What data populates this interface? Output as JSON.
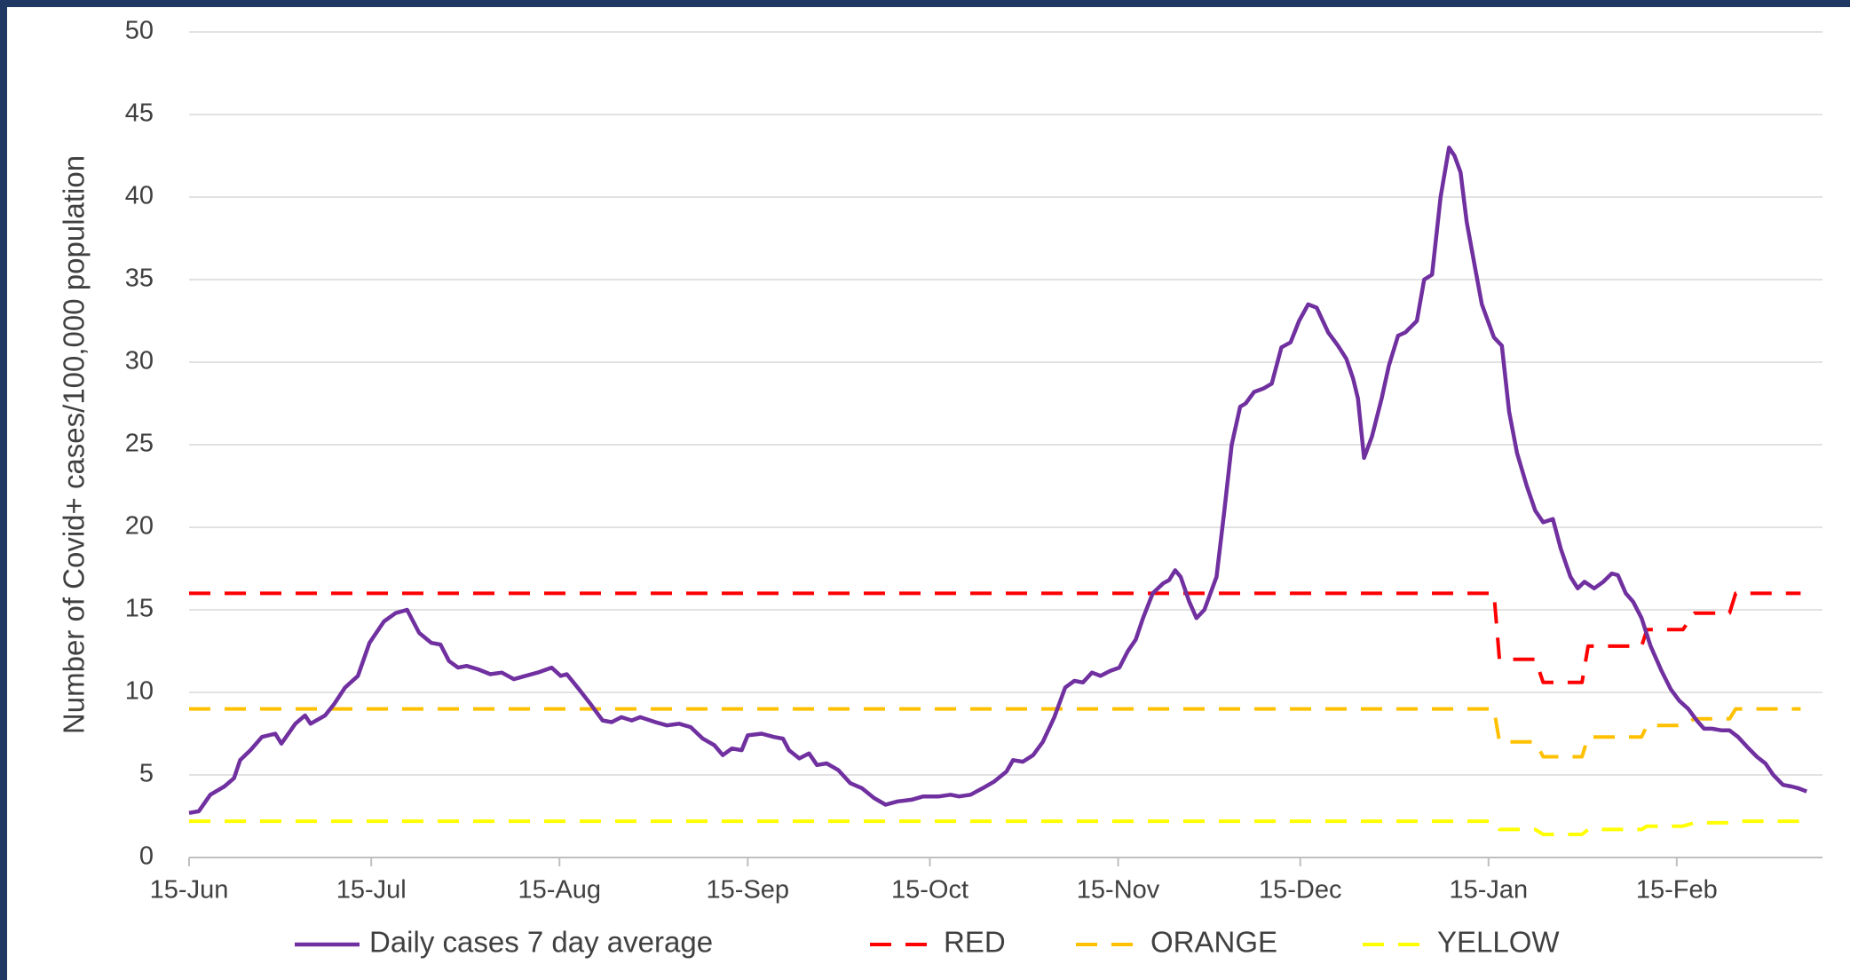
{
  "chart_data": {
    "type": "line",
    "y_label": "Number of Covid+ cases/100,000 population",
    "xlim": [
      0,
      269
    ],
    "xticks": [
      {
        "value": 0,
        "label": "15-Jun"
      },
      {
        "value": 30,
        "label": "15-Jul"
      },
      {
        "value": 61,
        "label": "15-Aug"
      },
      {
        "value": 92,
        "label": "15-Sep"
      },
      {
        "value": 122,
        "label": "15-Oct"
      },
      {
        "value": 153,
        "label": "15-Nov"
      },
      {
        "value": 183,
        "label": "15-Dec"
      },
      {
        "value": 214,
        "label": "15-Jan"
      },
      {
        "value": 245,
        "label": "15-Feb"
      }
    ],
    "ylim": [
      0,
      50
    ],
    "yticks": [
      0,
      5,
      10,
      15,
      20,
      25,
      30,
      35,
      40,
      45,
      50
    ],
    "grid": true,
    "legend": "bottom",
    "series": [
      {
        "name": "Daily cases 7 day average",
        "color": "#7030a0",
        "style": "solid",
        "x": [
          0,
          1.6,
          3.5,
          5.8,
          7.4,
          8.4,
          10.1,
          12.0,
          14.2,
          15.2,
          17.5,
          19.1,
          20.0,
          22.4,
          23.9,
          25.7,
          27.8,
          29.7,
          32.1,
          34.0,
          35.9,
          37.9,
          39.9,
          41.4,
          42.8,
          44.3,
          45.7,
          47.6,
          49.6,
          51.5,
          53.5,
          55.4,
          57.4,
          59.7,
          61.2,
          62.2,
          64.2,
          66.1,
          68.1,
          69.6,
          71.2,
          72.9,
          74.3,
          76.8,
          78.7,
          80.7,
          82.6,
          84.6,
          86.5,
          87.9,
          89.4,
          91.0,
          92.0,
          94.3,
          96.3,
          97.8,
          98.8,
          100.5,
          102.1,
          103.4,
          105.0,
          106.9,
          108.9,
          110.8,
          112.8,
          114.7,
          116.7,
          119.0,
          120.9,
          123.5,
          125.4,
          126.8,
          128.7,
          130.7,
          132.6,
          134.6,
          135.7,
          137.3,
          139.0,
          140.6,
          142.5,
          144.3,
          145.8,
          147.2,
          148.7,
          150.1,
          151.7,
          153.2,
          154.6,
          155.9,
          157.1,
          158.7,
          160.4,
          161.4,
          162.4,
          163.3,
          164.7,
          165.9,
          167.2,
          169.2,
          170.5,
          171.7,
          173.1,
          174.0,
          175.4,
          176.9,
          178.3,
          179.9,
          181.4,
          182.8,
          184.3,
          185.7,
          187.6,
          189.2,
          190.6,
          191.7,
          192.5,
          193.5,
          194.8,
          196.4,
          197.6,
          199.1,
          200.3,
          202.2,
          203.4,
          204.7,
          206.1,
          207.5,
          208.4,
          209.4,
          210.4,
          211.9,
          212.9,
          213.9,
          214.9,
          216.2,
          217.4,
          218.7,
          220.3,
          221.7,
          223.0,
          224.6,
          225.9,
          227.5,
          228.7,
          229.8,
          231.4,
          232.9,
          234.3,
          235.3,
          236.6,
          237.8,
          239.2,
          240.7,
          242.5,
          244.0,
          245.4,
          246.9,
          248.3,
          249.5,
          250.8,
          252.4,
          253.7,
          255.1,
          256.6,
          258.2,
          259.6,
          260.9,
          262.5,
          263.9,
          265.0,
          266.4
        ],
        "values": [
          2.7,
          2.8,
          3.8,
          4.3,
          4.8,
          5.9,
          6.5,
          7.3,
          7.5,
          6.9,
          8.1,
          8.6,
          8.1,
          8.6,
          9.3,
          10.3,
          11.0,
          13.0,
          14.3,
          14.8,
          15.0,
          13.6,
          13.0,
          12.9,
          11.9,
          11.5,
          11.6,
          11.4,
          11.1,
          11.2,
          10.8,
          11.0,
          11.2,
          11.5,
          11.0,
          11.1,
          10.2,
          9.3,
          8.3,
          8.2,
          8.5,
          8.3,
          8.5,
          8.2,
          8.0,
          8.1,
          7.9,
          7.2,
          6.8,
          6.2,
          6.6,
          6.5,
          7.4,
          7.5,
          7.3,
          7.2,
          6.5,
          6.0,
          6.3,
          5.6,
          5.7,
          5.3,
          4.5,
          4.2,
          3.6,
          3.2,
          3.4,
          3.5,
          3.7,
          3.7,
          3.8,
          3.7,
          3.8,
          4.2,
          4.6,
          5.2,
          5.9,
          5.8,
          6.2,
          7.0,
          8.5,
          10.3,
          10.7,
          10.6,
          11.2,
          11.0,
          11.3,
          11.5,
          12.5,
          13.2,
          14.5,
          16.0,
          16.6,
          16.8,
          17.4,
          17.0,
          15.5,
          14.5,
          15.0,
          17.0,
          21.0,
          25.0,
          27.3,
          27.5,
          28.2,
          28.4,
          28.7,
          30.9,
          31.2,
          32.5,
          33.5,
          33.3,
          31.8,
          31.0,
          30.2,
          29.0,
          27.8,
          24.2,
          25.5,
          27.8,
          29.8,
          31.6,
          31.8,
          32.5,
          35.0,
          35.3,
          40.0,
          43.0,
          42.5,
          41.5,
          38.5,
          35.5,
          33.5,
          32.5,
          31.5,
          31.0,
          27.0,
          24.5,
          22.5,
          21.0,
          20.3,
          20.5,
          18.7,
          17.0,
          16.3,
          16.7,
          16.3,
          16.7,
          17.2,
          17.1,
          16.0,
          15.5,
          14.5,
          12.8,
          11.3,
          10.2,
          9.5,
          9.0,
          8.3,
          7.8,
          7.8,
          7.7,
          7.7,
          7.3,
          6.7,
          6.1,
          5.7,
          5.0,
          4.4,
          4.3,
          4.2,
          4.0
        ]
      },
      {
        "name": "RED",
        "color": "#ff0000",
        "style": "dashed",
        "x": [
          0,
          214.9,
          215.8,
          221.7,
          223.0,
          229.4,
          230.4,
          239.2,
          240.1,
          246.0,
          247.9,
          253.7,
          254.7,
          265.4
        ],
        "values": [
          16,
          16,
          12,
          12,
          10.6,
          10.6,
          12.8,
          12.8,
          13.8,
          13.8,
          14.8,
          14.8,
          16,
          16
        ]
      },
      {
        "name": "ORANGE",
        "color": "#ffc000",
        "style": "dashed",
        "x": [
          0,
          214.9,
          215.8,
          221.7,
          223.0,
          229.4,
          230.4,
          239.2,
          240.1,
          246.0,
          247.9,
          253.7,
          254.7,
          265.4
        ],
        "values": [
          9,
          9,
          7,
          7,
          6.1,
          6.1,
          7.3,
          7.3,
          8,
          8,
          8.4,
          8.4,
          9,
          9
        ]
      },
      {
        "name": "YELLOW",
        "color": "#ffff00",
        "style": "dashed",
        "x": [
          0,
          214.9,
          215.8,
          221.7,
          223.0,
          229.4,
          230.4,
          239.2,
          240.1,
          246.0,
          247.9,
          253.7,
          254.7,
          265.4
        ],
        "values": [
          2.2,
          2.2,
          1.7,
          1.7,
          1.4,
          1.4,
          1.7,
          1.7,
          1.9,
          1.9,
          2.1,
          2.1,
          2.2,
          2.2
        ]
      }
    ]
  }
}
